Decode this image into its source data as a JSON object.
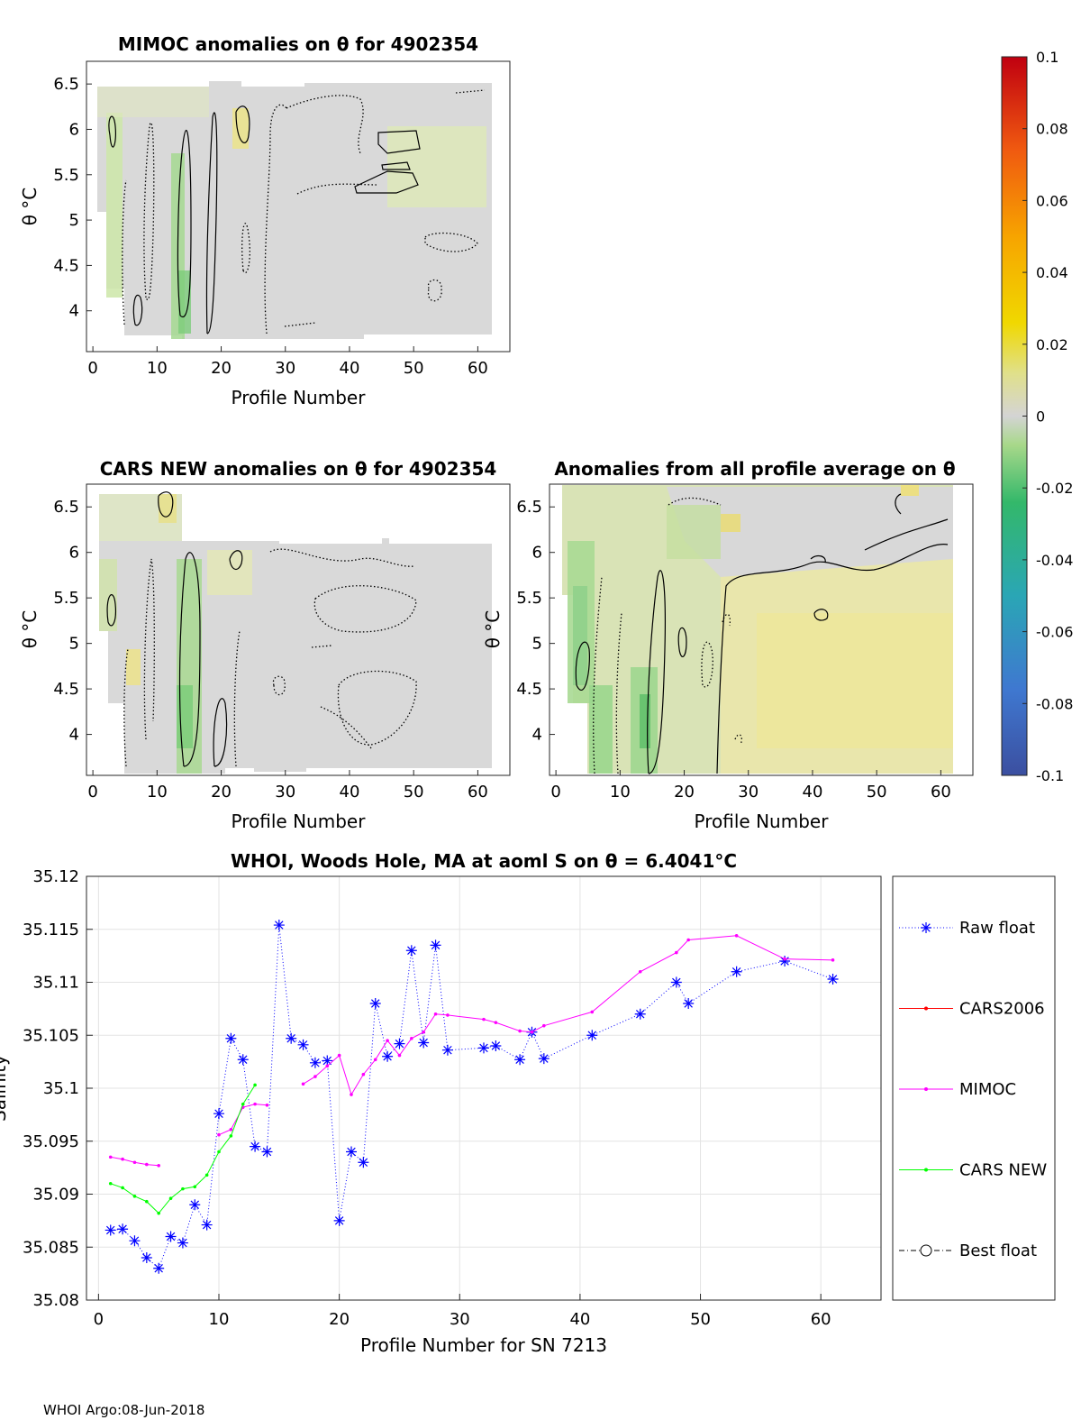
{
  "footer": "WHOI Argo:08-Jun-2018",
  "colorbar": {
    "ticks": [
      "0.1",
      "0.08",
      "0.06",
      "0.04",
      "0.02",
      "0",
      "-0.02",
      "-0.04",
      "-0.06",
      "-0.08",
      "-0.1"
    ],
    "range": [
      -0.1,
      0.1
    ]
  },
  "chart_data": [
    {
      "type": "heatmap",
      "title": "MIMOC anomalies on θ  for 4902354",
      "xlabel": "Profile Number",
      "ylabel": "θ °C",
      "xlim": [
        -1,
        65
      ],
      "ylim": [
        3.55,
        6.75
      ],
      "xticks": [
        "0",
        "10",
        "20",
        "30",
        "40",
        "50",
        "60"
      ],
      "yticks": [
        "4",
        "4.5",
        "5",
        "5.5",
        "6",
        "6.5"
      ],
      "colormap_range": [
        -0.1,
        0.1
      ]
    },
    {
      "type": "heatmap",
      "title": "CARS NEW anomalies on θ for 4902354",
      "xlabel": "Profile Number",
      "ylabel": "θ °C",
      "xlim": [
        -1,
        65
      ],
      "ylim": [
        3.55,
        6.75
      ],
      "xticks": [
        "0",
        "10",
        "20",
        "30",
        "40",
        "50",
        "60"
      ],
      "yticks": [
        "4",
        "4.5",
        "5",
        "5.5",
        "6",
        "6.5"
      ],
      "colormap_range": [
        -0.1,
        0.1
      ]
    },
    {
      "type": "heatmap",
      "title": "Anomalies from all profile average on θ",
      "xlabel": "Profile Number",
      "ylabel": "θ °C",
      "xlim": [
        -1,
        65
      ],
      "ylim": [
        3.55,
        6.75
      ],
      "xticks": [
        "0",
        "10",
        "20",
        "30",
        "40",
        "50",
        "60"
      ],
      "yticks": [
        "4",
        "4.5",
        "5",
        "5.5",
        "6",
        "6.5"
      ],
      "colormap_range": [
        -0.1,
        0.1
      ]
    },
    {
      "type": "line",
      "title": "WHOI, Woods Hole, MA at aoml S on θ = 6.4041°C",
      "xlabel": "Profile Number for SN 7213",
      "ylabel": "Salinity",
      "xlim": [
        -1,
        65
      ],
      "ylim": [
        35.08,
        35.12
      ],
      "xticks": [
        "0",
        "10",
        "20",
        "30",
        "40",
        "50",
        "60"
      ],
      "yticks": [
        "35.08",
        "35.085",
        "35.09",
        "35.095",
        "35.1",
        "35.105",
        "35.11",
        "35.115",
        "35.12"
      ],
      "grid": true,
      "legend_position": "outside-right",
      "series": [
        {
          "name": "Raw float",
          "color": "#0000ff",
          "style": "dotted-star",
          "x": [
            1,
            2,
            3,
            4,
            5,
            6,
            7,
            8,
            9,
            10,
            11,
            12,
            13,
            14,
            15,
            16,
            17,
            18,
            19,
            20,
            21,
            22,
            23,
            24,
            25,
            26,
            27,
            28,
            29,
            32,
            33,
            35,
            36,
            37,
            41,
            45,
            48,
            49,
            53,
            57,
            61
          ],
          "y": [
            35.0866,
            35.0867,
            35.0856,
            35.084,
            35.083,
            35.086,
            35.0854,
            35.089,
            35.0871,
            35.0976,
            35.1047,
            35.1027,
            35.0945,
            35.094,
            35.1154,
            35.1047,
            35.1041,
            35.1024,
            35.1026,
            35.0875,
            35.094,
            35.093,
            35.108,
            35.103,
            35.1042,
            35.113,
            35.1043,
            35.1135,
            35.1036,
            35.1038,
            35.104,
            35.1027,
            35.1053,
            35.1028,
            35.105,
            35.107,
            35.11,
            35.108,
            35.111,
            35.112,
            35.1103
          ]
        },
        {
          "name": "CARS2006",
          "color": "#ff0000",
          "style": "solid-dot",
          "x": [],
          "y": []
        },
        {
          "name": "MIMOC",
          "color": "#ff00ff",
          "style": "solid-dot",
          "segments": [
            {
              "x": [
                1,
                2,
                3,
                4,
                5
              ],
              "y": [
                35.0935,
                35.0933,
                35.093,
                35.0928,
                35.0927
              ]
            },
            {
              "x": [
                10,
                11,
                12,
                13,
                14
              ],
              "y": [
                35.0956,
                35.0961,
                35.0982,
                35.0985,
                35.0984
              ]
            },
            {
              "x": [
                17,
                18,
                19,
                20,
                21,
                22,
                23,
                24,
                25,
                26,
                27,
                28,
                29,
                32,
                33,
                35,
                36,
                37,
                41,
                45,
                48,
                49,
                53,
                57,
                61
              ],
              "y": [
                35.1004,
                35.1011,
                35.1021,
                35.1031,
                35.0994,
                35.1013,
                35.1027,
                35.1045,
                35.1031,
                35.1047,
                35.1053,
                35.107,
                35.1069,
                35.1065,
                35.1062,
                35.1054,
                35.1053,
                35.1059,
                35.1072,
                35.111,
                35.1128,
                35.114,
                35.1144,
                35.1122,
                35.1121
              ]
            }
          ]
        },
        {
          "name": "CARS NEW",
          "color": "#00ff00",
          "style": "solid-dot",
          "x": [
            1,
            2,
            3,
            4,
            5,
            6,
            7,
            8,
            9,
            10,
            11,
            12,
            13
          ],
          "y": [
            35.091,
            35.0906,
            35.0898,
            35.0893,
            35.0882,
            35.0896,
            35.0905,
            35.0907,
            35.0918,
            35.094,
            35.0955,
            35.0985,
            35.1003
          ]
        },
        {
          "name": "Best float",
          "color": "#000000",
          "style": "dashdot-circle",
          "x": [],
          "y": []
        }
      ]
    }
  ]
}
